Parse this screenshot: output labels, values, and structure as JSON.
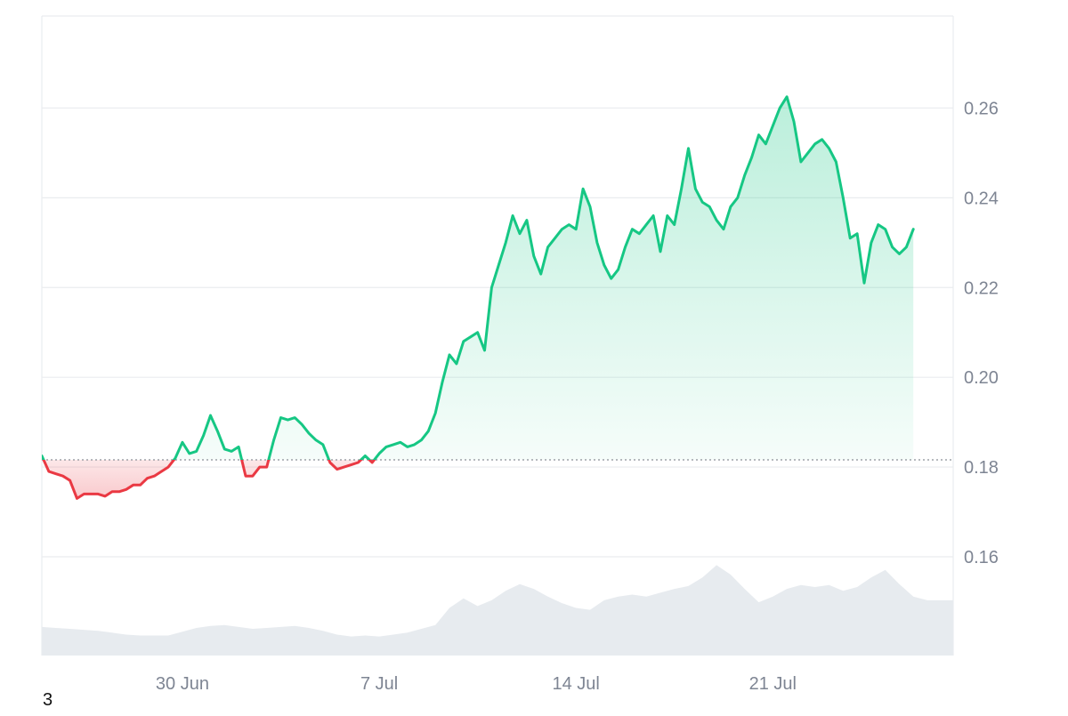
{
  "chart_data": {
    "type": "area",
    "baseline": 0.1816,
    "ylim": [
      0.138,
      0.2805
    ],
    "yticks": [
      {
        "value": 0.16,
        "label": "0.16"
      },
      {
        "value": 0.18,
        "label": "0.18"
      },
      {
        "value": 0.2,
        "label": "0.20"
      },
      {
        "value": 0.22,
        "label": "0.22"
      },
      {
        "value": 0.24,
        "label": "0.24"
      },
      {
        "value": 0.26,
        "label": "0.26"
      }
    ],
    "xlim": [
      "2025-06-25",
      "2025-07-27T10:00"
    ],
    "xticks": [
      {
        "date": "2025-06-30",
        "label": "30 Jun"
      },
      {
        "date": "2025-07-07",
        "label": "7 Jul"
      },
      {
        "date": "2025-07-14",
        "label": "14 Jul"
      },
      {
        "date": "2025-07-21",
        "label": "21 Jul"
      }
    ],
    "price_series": [
      [
        "2025-06-25T00:00",
        0.1825
      ],
      [
        "2025-06-25T06:00",
        0.179
      ],
      [
        "2025-06-25T12:00",
        0.1785
      ],
      [
        "2025-06-25T18:00",
        0.178
      ],
      [
        "2025-06-26T00:00",
        0.177
      ],
      [
        "2025-06-26T06:00",
        0.173
      ],
      [
        "2025-06-26T12:00",
        0.174
      ],
      [
        "2025-06-26T18:00",
        0.174
      ],
      [
        "2025-06-27T00:00",
        0.174
      ],
      [
        "2025-06-27T06:00",
        0.1735
      ],
      [
        "2025-06-27T12:00",
        0.1745
      ],
      [
        "2025-06-27T18:00",
        0.1745
      ],
      [
        "2025-06-28T00:00",
        0.175
      ],
      [
        "2025-06-28T06:00",
        0.176
      ],
      [
        "2025-06-28T12:00",
        0.176
      ],
      [
        "2025-06-28T18:00",
        0.1775
      ],
      [
        "2025-06-29T00:00",
        0.178
      ],
      [
        "2025-06-29T06:00",
        0.179
      ],
      [
        "2025-06-29T12:00",
        0.18
      ],
      [
        "2025-06-29T18:00",
        0.182
      ],
      [
        "2025-06-30T00:00",
        0.1855
      ],
      [
        "2025-06-30T06:00",
        0.183
      ],
      [
        "2025-06-30T12:00",
        0.1835
      ],
      [
        "2025-06-30T18:00",
        0.187
      ],
      [
        "2025-07-01T00:00",
        0.1915
      ],
      [
        "2025-07-01T06:00",
        0.188
      ],
      [
        "2025-07-01T12:00",
        0.184
      ],
      [
        "2025-07-01T18:00",
        0.1835
      ],
      [
        "2025-07-02T00:00",
        0.1845
      ],
      [
        "2025-07-02T06:00",
        0.178
      ],
      [
        "2025-07-02T12:00",
        0.178
      ],
      [
        "2025-07-02T18:00",
        0.18
      ],
      [
        "2025-07-03T00:00",
        0.18
      ],
      [
        "2025-07-03T06:00",
        0.186
      ],
      [
        "2025-07-03T12:00",
        0.191
      ],
      [
        "2025-07-03T18:00",
        0.1905
      ],
      [
        "2025-07-04T00:00",
        0.191
      ],
      [
        "2025-07-04T06:00",
        0.1895
      ],
      [
        "2025-07-04T12:00",
        0.1875
      ],
      [
        "2025-07-04T18:00",
        0.186
      ],
      [
        "2025-07-05T00:00",
        0.185
      ],
      [
        "2025-07-05T06:00",
        0.181
      ],
      [
        "2025-07-05T12:00",
        0.1795
      ],
      [
        "2025-07-05T18:00",
        0.18
      ],
      [
        "2025-07-06T00:00",
        0.1805
      ],
      [
        "2025-07-06T06:00",
        0.181
      ],
      [
        "2025-07-06T12:00",
        0.1825
      ],
      [
        "2025-07-06T18:00",
        0.181
      ],
      [
        "2025-07-07T00:00",
        0.183
      ],
      [
        "2025-07-07T06:00",
        0.1845
      ],
      [
        "2025-07-07T12:00",
        0.185
      ],
      [
        "2025-07-07T18:00",
        0.1855
      ],
      [
        "2025-07-08T00:00",
        0.1845
      ],
      [
        "2025-07-08T06:00",
        0.185
      ],
      [
        "2025-07-08T12:00",
        0.186
      ],
      [
        "2025-07-08T18:00",
        0.188
      ],
      [
        "2025-07-09T00:00",
        0.192
      ],
      [
        "2025-07-09T06:00",
        0.199
      ],
      [
        "2025-07-09T12:00",
        0.205
      ],
      [
        "2025-07-09T18:00",
        0.203
      ],
      [
        "2025-07-10T00:00",
        0.208
      ],
      [
        "2025-07-10T06:00",
        0.209
      ],
      [
        "2025-07-10T12:00",
        0.21
      ],
      [
        "2025-07-10T18:00",
        0.206
      ],
      [
        "2025-07-11T00:00",
        0.22
      ],
      [
        "2025-07-11T06:00",
        0.225
      ],
      [
        "2025-07-11T12:00",
        0.23
      ],
      [
        "2025-07-11T18:00",
        0.236
      ],
      [
        "2025-07-12T00:00",
        0.232
      ],
      [
        "2025-07-12T06:00",
        0.235
      ],
      [
        "2025-07-12T12:00",
        0.227
      ],
      [
        "2025-07-12T18:00",
        0.223
      ],
      [
        "2025-07-13T00:00",
        0.229
      ],
      [
        "2025-07-13T06:00",
        0.231
      ],
      [
        "2025-07-13T12:00",
        0.233
      ],
      [
        "2025-07-13T18:00",
        0.234
      ],
      [
        "2025-07-14T00:00",
        0.233
      ],
      [
        "2025-07-14T06:00",
        0.242
      ],
      [
        "2025-07-14T12:00",
        0.238
      ],
      [
        "2025-07-14T18:00",
        0.23
      ],
      [
        "2025-07-15T00:00",
        0.225
      ],
      [
        "2025-07-15T06:00",
        0.222
      ],
      [
        "2025-07-15T12:00",
        0.224
      ],
      [
        "2025-07-15T18:00",
        0.229
      ],
      [
        "2025-07-16T00:00",
        0.233
      ],
      [
        "2025-07-16T06:00",
        0.232
      ],
      [
        "2025-07-16T12:00",
        0.234
      ],
      [
        "2025-07-16T18:00",
        0.236
      ],
      [
        "2025-07-17T00:00",
        0.228
      ],
      [
        "2025-07-17T06:00",
        0.236
      ],
      [
        "2025-07-17T12:00",
        0.234
      ],
      [
        "2025-07-17T18:00",
        0.242
      ],
      [
        "2025-07-18T00:00",
        0.251
      ],
      [
        "2025-07-18T06:00",
        0.242
      ],
      [
        "2025-07-18T12:00",
        0.239
      ],
      [
        "2025-07-18T18:00",
        0.238
      ],
      [
        "2025-07-19T00:00",
        0.235
      ],
      [
        "2025-07-19T06:00",
        0.233
      ],
      [
        "2025-07-19T12:00",
        0.238
      ],
      [
        "2025-07-19T18:00",
        0.24
      ],
      [
        "2025-07-20T00:00",
        0.245
      ],
      [
        "2025-07-20T06:00",
        0.249
      ],
      [
        "2025-07-20T12:00",
        0.254
      ],
      [
        "2025-07-20T18:00",
        0.252
      ],
      [
        "2025-07-21T00:00",
        0.256
      ],
      [
        "2025-07-21T06:00",
        0.26
      ],
      [
        "2025-07-21T12:00",
        0.2625
      ],
      [
        "2025-07-21T18:00",
        0.257
      ],
      [
        "2025-07-22T00:00",
        0.248
      ],
      [
        "2025-07-22T06:00",
        0.25
      ],
      [
        "2025-07-22T12:00",
        0.252
      ],
      [
        "2025-07-22T18:00",
        0.253
      ],
      [
        "2025-07-23T00:00",
        0.251
      ],
      [
        "2025-07-23T06:00",
        0.248
      ],
      [
        "2025-07-23T12:00",
        0.24
      ],
      [
        "2025-07-23T18:00",
        0.231
      ],
      [
        "2025-07-24T00:00",
        0.232
      ],
      [
        "2025-07-24T06:00",
        0.221
      ],
      [
        "2025-07-24T12:00",
        0.23
      ],
      [
        "2025-07-24T18:00",
        0.234
      ],
      [
        "2025-07-25T00:00",
        0.233
      ],
      [
        "2025-07-25T06:00",
        0.229
      ],
      [
        "2025-07-25T12:00",
        0.2275
      ],
      [
        "2025-07-25T18:00",
        0.229
      ],
      [
        "2025-07-26T00:00",
        0.233
      ]
    ],
    "volume_series": [
      [
        "2025-06-25T00:00",
        0.3
      ],
      [
        "2025-06-25T12:00",
        0.29
      ],
      [
        "2025-06-26T00:00",
        0.28
      ],
      [
        "2025-06-26T12:00",
        0.27
      ],
      [
        "2025-06-27T00:00",
        0.26
      ],
      [
        "2025-06-27T12:00",
        0.24
      ],
      [
        "2025-06-28T00:00",
        0.22
      ],
      [
        "2025-06-28T12:00",
        0.21
      ],
      [
        "2025-06-29T00:00",
        0.21
      ],
      [
        "2025-06-29T12:00",
        0.21
      ],
      [
        "2025-06-30T00:00",
        0.25
      ],
      [
        "2025-06-30T12:00",
        0.29
      ],
      [
        "2025-07-01T00:00",
        0.31
      ],
      [
        "2025-07-01T12:00",
        0.32
      ],
      [
        "2025-07-02T00:00",
        0.3
      ],
      [
        "2025-07-02T12:00",
        0.28
      ],
      [
        "2025-07-03T00:00",
        0.29
      ],
      [
        "2025-07-03T12:00",
        0.3
      ],
      [
        "2025-07-04T00:00",
        0.31
      ],
      [
        "2025-07-04T12:00",
        0.29
      ],
      [
        "2025-07-05T00:00",
        0.26
      ],
      [
        "2025-07-05T12:00",
        0.22
      ],
      [
        "2025-07-06T00:00",
        0.2
      ],
      [
        "2025-07-06T12:00",
        0.21
      ],
      [
        "2025-07-07T00:00",
        0.2
      ],
      [
        "2025-07-07T12:00",
        0.22
      ],
      [
        "2025-07-08T00:00",
        0.24
      ],
      [
        "2025-07-08T12:00",
        0.28
      ],
      [
        "2025-07-09T00:00",
        0.32
      ],
      [
        "2025-07-09T12:00",
        0.5
      ],
      [
        "2025-07-10T00:00",
        0.6
      ],
      [
        "2025-07-10T12:00",
        0.52
      ],
      [
        "2025-07-11T00:00",
        0.58
      ],
      [
        "2025-07-11T12:00",
        0.68
      ],
      [
        "2025-07-12T00:00",
        0.75
      ],
      [
        "2025-07-12T12:00",
        0.7
      ],
      [
        "2025-07-13T00:00",
        0.62
      ],
      [
        "2025-07-13T12:00",
        0.55
      ],
      [
        "2025-07-14T00:00",
        0.5
      ],
      [
        "2025-07-14T12:00",
        0.48
      ],
      [
        "2025-07-15T00:00",
        0.58
      ],
      [
        "2025-07-15T12:00",
        0.62
      ],
      [
        "2025-07-16T00:00",
        0.64
      ],
      [
        "2025-07-16T12:00",
        0.62
      ],
      [
        "2025-07-17T00:00",
        0.66
      ],
      [
        "2025-07-17T12:00",
        0.7
      ],
      [
        "2025-07-18T00:00",
        0.73
      ],
      [
        "2025-07-18T12:00",
        0.82
      ],
      [
        "2025-07-19T00:00",
        0.95
      ],
      [
        "2025-07-19T12:00",
        0.85
      ],
      [
        "2025-07-20T00:00",
        0.7
      ],
      [
        "2025-07-20T12:00",
        0.56
      ],
      [
        "2025-07-21T00:00",
        0.62
      ],
      [
        "2025-07-21T12:00",
        0.7
      ],
      [
        "2025-07-22T00:00",
        0.74
      ],
      [
        "2025-07-22T12:00",
        0.72
      ],
      [
        "2025-07-23T00:00",
        0.74
      ],
      [
        "2025-07-23T12:00",
        0.68
      ],
      [
        "2025-07-24T00:00",
        0.72
      ],
      [
        "2025-07-24T12:00",
        0.82
      ],
      [
        "2025-07-25T00:00",
        0.9
      ],
      [
        "2025-07-25T12:00",
        0.75
      ],
      [
        "2025-07-26T00:00",
        0.62
      ],
      [
        "2025-07-26T12:00",
        0.58
      ]
    ],
    "colors": {
      "up_line": "#16c784",
      "down_line": "#ea3943",
      "up_fill": "#16c784",
      "down_fill": "#ea3943",
      "volume": "#e7ebef",
      "grid": "#eaecef",
      "baseline": "#8b8f97",
      "tick_text": "#7e8593"
    },
    "grid": true
  },
  "footer": {
    "corner_label": "3"
  }
}
